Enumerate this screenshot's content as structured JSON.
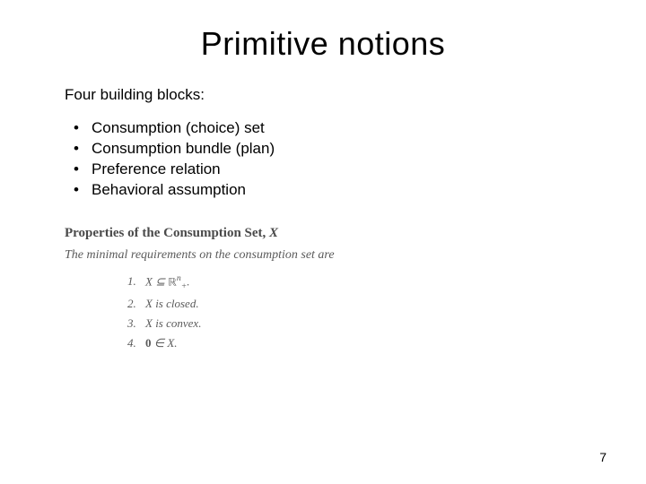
{
  "title": "Primitive notions",
  "intro": "Four building blocks:",
  "bullets": [
    "Consumption (choice) set",
    "Consumption bundle (plan)",
    "Preference relation",
    "Behavioral assumption"
  ],
  "properties": {
    "heading_prefix": "Properties of the Consumption Set, ",
    "heading_var": "X",
    "subtext": "The minimal requirements on the consumption set are",
    "items_html": [
      "<span class='num'>1.</span> X ⊆ <span class='bb'>ℝ</span><span class='sup'>n</span><span class='sub'>+</span>.",
      "<span class='num'>2.</span> X is closed.",
      "<span class='num'>3.</span> X is convex.",
      "<span class='num'>4.</span> <span class='upright'><b>0</b></span> ∈ X."
    ]
  },
  "page_number": "7",
  "colors": {
    "background": "#ffffff",
    "text": "#000000",
    "serif_text": "#5a5a5a"
  },
  "typography": {
    "title_fontsize": 36,
    "body_fontsize": 17,
    "serif_fontsize": 14
  }
}
